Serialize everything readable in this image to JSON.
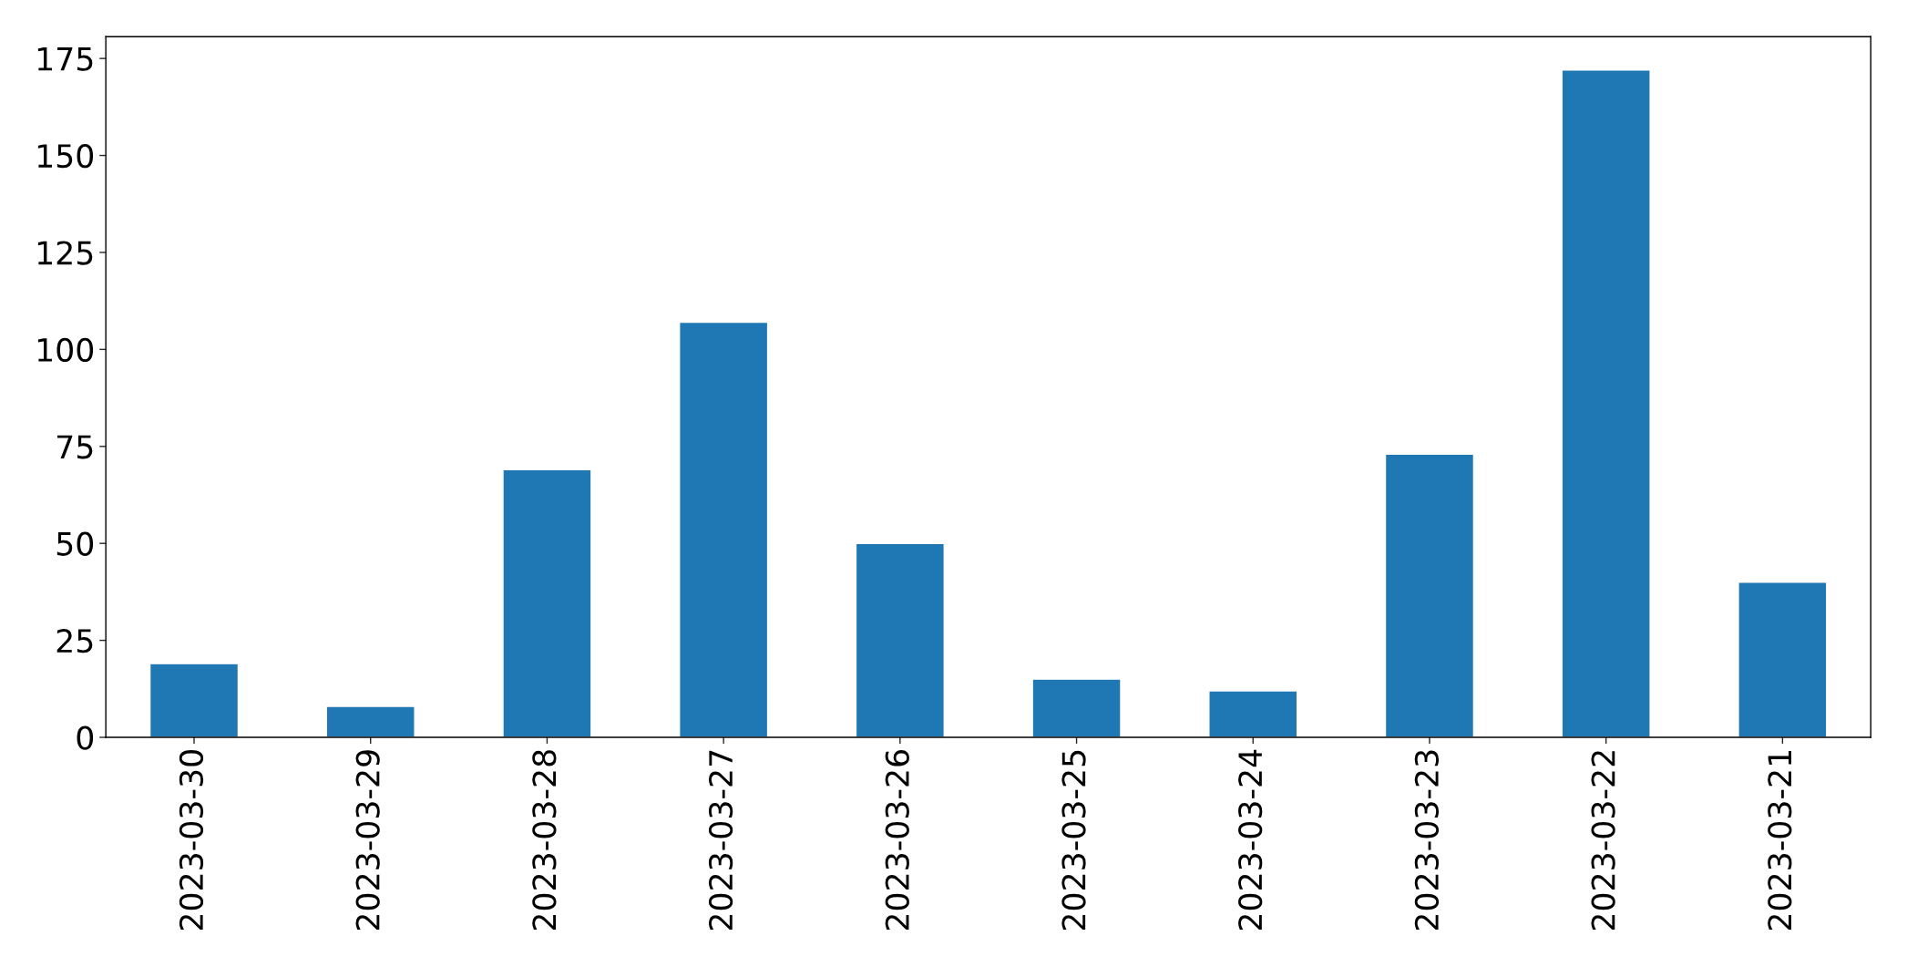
{
  "chart_data": {
    "type": "bar",
    "categories": [
      "2023-03-30",
      "2023-03-29",
      "2023-03-28",
      "2023-03-27",
      "2023-03-26",
      "2023-03-25",
      "2023-03-24",
      "2023-03-23",
      "2023-03-22",
      "2023-03-21"
    ],
    "values": [
      19,
      8,
      69,
      107,
      50,
      15,
      12,
      73,
      172,
      40
    ],
    "color": "#1f77b4",
    "ylim": [
      0,
      180.6
    ],
    "yticks": [
      0,
      25,
      50,
      75,
      100,
      125,
      150,
      175
    ],
    "grid": false
  }
}
